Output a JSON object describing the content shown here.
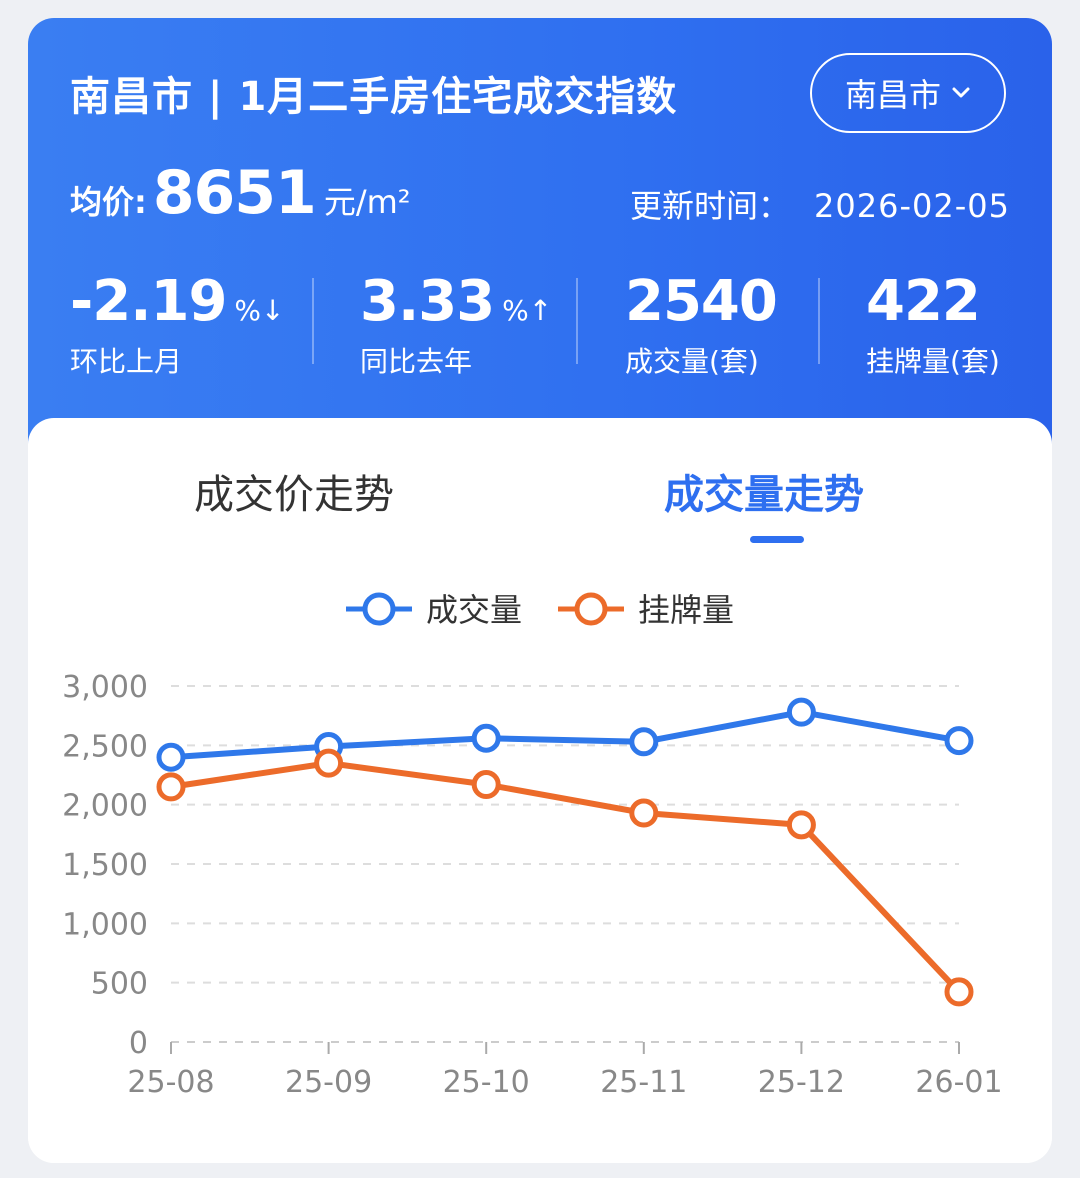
{
  "header": {
    "title": "南昌市 | 1月二手房住宅成交指数",
    "city_select": "南昌市",
    "avg_label": "均价:",
    "avg_value": "8651",
    "avg_unit": "元/m²",
    "updated_label": "更新时间：",
    "updated_value": "2026-02-05"
  },
  "stats": [
    {
      "value": "-2.19",
      "suffix": "%↓",
      "label": "环比上月"
    },
    {
      "value": "3.33",
      "suffix": "%↑",
      "label": "同比去年"
    },
    {
      "value": "2540",
      "suffix": "",
      "label": "成交量(套)"
    },
    {
      "value": "422",
      "suffix": "",
      "label": "挂牌量(套)"
    }
  ],
  "tabs": [
    {
      "label": "成交价走势",
      "active": false
    },
    {
      "label": "成交量走势",
      "active": true
    }
  ],
  "colors": {
    "primary": "#2e6ff0",
    "series_volume": "#2f78ea",
    "series_listing": "#ec6b2a"
  },
  "chart_data": {
    "type": "line",
    "categories": [
      "25-08",
      "25-09",
      "25-10",
      "25-11",
      "25-12",
      "26-01"
    ],
    "series": [
      {
        "name": "成交量",
        "values": [
          2400,
          2490,
          2560,
          2530,
          2780,
          2540
        ]
      },
      {
        "name": "挂牌量",
        "values": [
          2150,
          2350,
          2170,
          1930,
          1830,
          422
        ]
      }
    ],
    "yticks": [
      "0",
      "500",
      "1,000",
      "1,500",
      "2,000",
      "2,500",
      "3,000"
    ],
    "ylim": [
      0,
      3000
    ],
    "grid": true,
    "legend": "top"
  }
}
